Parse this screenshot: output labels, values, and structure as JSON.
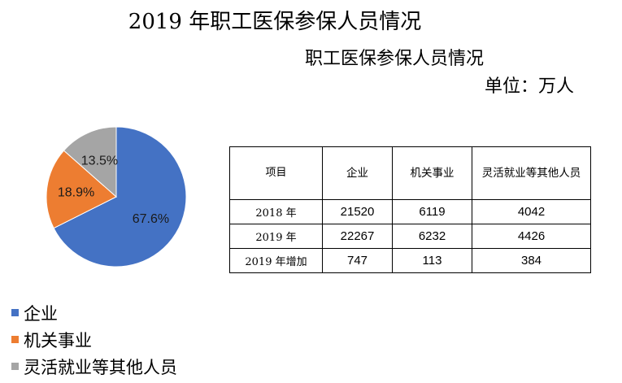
{
  "title": "2019 年职工医保参保人员情况",
  "subtitle": "职工医保参保人员情况",
  "unit": "单位：万人",
  "chart_data": {
    "type": "pie",
    "categories": [
      "企业",
      "机关事业",
      "灵活就业等其他人员"
    ],
    "values": [
      67.6,
      18.9,
      13.5
    ],
    "labels": [
      "67.6%",
      "18.9%",
      "13.5%"
    ],
    "colors": [
      "#4472C4",
      "#ED7D31",
      "#A5A5A5"
    ],
    "legend_position": "bottom-left"
  },
  "table": {
    "headers": [
      "项目",
      "企业",
      "机关事业",
      "灵活就业等其他人员"
    ],
    "rows": [
      [
        "2018 年",
        "21520",
        "6119",
        "4042"
      ],
      [
        "2019 年",
        "22267",
        "6232",
        "4426"
      ],
      [
        "2019 年增加",
        "747",
        "113",
        "384"
      ]
    ]
  }
}
